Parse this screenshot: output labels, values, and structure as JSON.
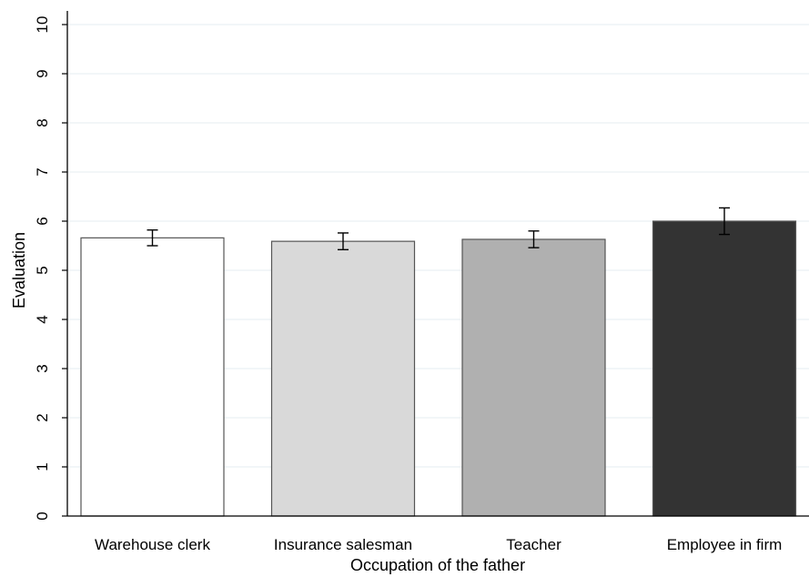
{
  "chart_data": {
    "type": "bar",
    "categories": [
      "Warehouse clerk",
      "Insurance salesman",
      "Teacher",
      "Employee in firm"
    ],
    "values": [
      5.66,
      5.59,
      5.63,
      6.0
    ],
    "error_bars": {
      "low": [
        5.5,
        5.42,
        5.46,
        5.73
      ],
      "high": [
        5.82,
        5.76,
        5.8,
        6.27
      ]
    },
    "bar_colors": [
      "#ffffff",
      "#d9d9d9",
      "#b0b0b0",
      "#333333"
    ],
    "xlabel": "Occupation of the father",
    "ylabel": "Evaluation",
    "ylim": [
      0,
      10
    ],
    "yticks": [
      "0",
      "1",
      "2",
      "3",
      "4",
      "5",
      "6",
      "7",
      "8",
      "9",
      "10"
    ],
    "grid": true
  }
}
